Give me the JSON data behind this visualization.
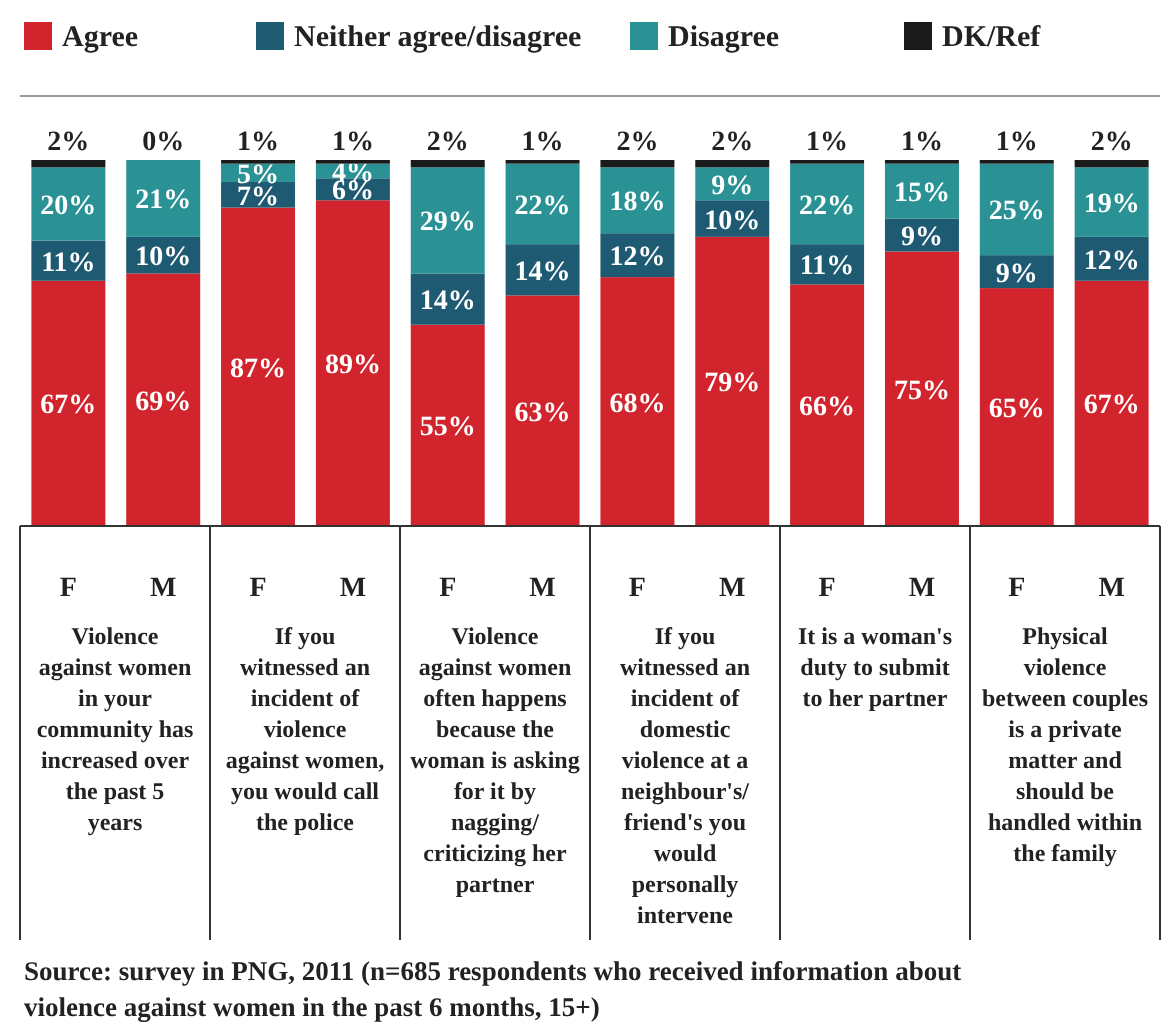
{
  "chart_data": {
    "type": "bar",
    "stacked": true,
    "legend": "top",
    "categories": [
      "F",
      "M",
      "F",
      "M",
      "F",
      "M",
      "F",
      "M",
      "F",
      "M",
      "F",
      "M"
    ],
    "series": [
      {
        "name": "Agree",
        "color": "#d1242c",
        "values": [
          67,
          69,
          87,
          89,
          55,
          63,
          68,
          79,
          66,
          75,
          65,
          67
        ],
        "value_labels": [
          "67%",
          "69%",
          "87%",
          "89%",
          "55%",
          "63%",
          "68%",
          "79%",
          "66%",
          "75%",
          "65%",
          "67%"
        ]
      },
      {
        "name": "Neither agree/disagree",
        "color": "#1e5a72",
        "values": [
          11,
          10,
          7,
          6,
          14,
          14,
          12,
          10,
          11,
          9,
          9,
          12
        ],
        "value_labels": [
          "11%",
          "10%",
          "7%",
          "6%",
          "14%",
          "14%",
          "12%",
          "10%",
          "11%",
          "9%",
          "9%",
          "12%"
        ]
      },
      {
        "name": "Disagree",
        "color": "#2a9295",
        "values": [
          20,
          21,
          5,
          4,
          29,
          22,
          18,
          9,
          22,
          15,
          25,
          19
        ],
        "value_labels": [
          "20%",
          "21%",
          "5%",
          "4%",
          "29%",
          "22%",
          "18%",
          "9%",
          "22%",
          "15%",
          "25%",
          "19%"
        ]
      },
      {
        "name": "DK/Ref",
        "color": "#1a1a1a",
        "values": [
          2,
          0,
          1,
          1,
          2,
          1,
          2,
          2,
          1,
          1,
          1,
          2
        ],
        "value_labels": [
          "2%",
          "0%",
          "1%",
          "1%",
          "2%",
          "1%",
          "2%",
          "2%",
          "1%",
          "1%",
          "1%",
          "2%"
        ]
      }
    ],
    "annotations": [
      "Violence against women in your community has increased over the past 5 years",
      "If you witnessed an incident of violence against women, you would call the police",
      "Violence against women often happens because the woman is asking for it by nagging/ criticizing her partner",
      "If you witnessed an incident of domestic violence at a neighbour's/ friend's you would personally intervene",
      "It is a woman's duty to submit to her partner",
      "Physical violence between couples is a private matter and should be handled within the family",
      "Source: survey in PNG, 2011 (n=685 respondents who received information about violence against women in the past 6 months, 15+)"
    ]
  }
}
